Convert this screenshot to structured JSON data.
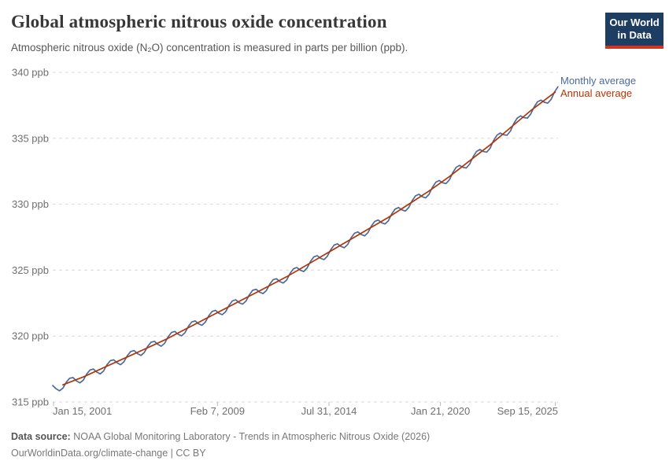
{
  "header": {
    "title": "Global atmospheric nitrous oxide concentration",
    "subtitle": "Atmospheric nitrous oxide (N₂O) concentration is measured in parts per billion (ppb).",
    "logo": {
      "line1": "Our World",
      "line2": "in Data",
      "bg_color": "#1d3d63",
      "accent_color": "#d13422"
    }
  },
  "chart_data": {
    "type": "line",
    "title": "Global atmospheric nitrous oxide concentration",
    "ylabel": "parts per billion (ppb)",
    "xlabel": "",
    "grid": "dashed-horizontal",
    "legend_position": "right-of-line-end",
    "xlim": [
      2001.0,
      2025.84
    ],
    "ylim": [
      315,
      340
    ],
    "y_ticks": [
      {
        "value": 340,
        "label": "340 ppb"
      },
      {
        "value": 335,
        "label": "335 ppb"
      },
      {
        "value": 330,
        "label": "330 ppb"
      },
      {
        "value": 325,
        "label": "325 ppb"
      },
      {
        "value": 320,
        "label": "320 ppb"
      },
      {
        "value": 315,
        "label": "315 ppb"
      }
    ],
    "x_ticks": [
      {
        "x": 2001.04,
        "label": "Jan 15, 2001"
      },
      {
        "x": 2009.1,
        "label": "Feb 7, 2009"
      },
      {
        "x": 2014.58,
        "label": "Jul 31, 2014"
      },
      {
        "x": 2020.06,
        "label": "Jan 21, 2020"
      },
      {
        "x": 2025.71,
        "label": "Sep 15, 2025"
      }
    ],
    "series": [
      {
        "name": "Monthly average",
        "color": "#4C6A9C",
        "x_start": 2001.0,
        "x_step": 0.166667,
        "values": [
          316.25,
          316.0,
          315.85,
          316.05,
          316.5,
          316.8,
          316.85,
          316.6,
          316.45,
          316.65,
          317.12,
          317.43,
          317.5,
          317.27,
          317.13,
          317.35,
          317.82,
          318.13,
          318.2,
          317.97,
          317.83,
          318.05,
          318.52,
          318.83,
          318.9,
          318.67,
          318.53,
          318.75,
          319.22,
          319.53,
          319.6,
          319.37,
          319.23,
          319.45,
          319.93,
          320.27,
          320.35,
          320.13,
          320.02,
          320.25,
          320.73,
          321.07,
          321.15,
          320.93,
          320.82,
          321.05,
          321.53,
          321.87,
          321.95,
          321.73,
          321.62,
          321.85,
          322.33,
          322.67,
          322.75,
          322.53,
          322.42,
          322.65,
          323.13,
          323.47,
          323.55,
          323.33,
          323.22,
          323.45,
          323.93,
          324.27,
          324.35,
          324.13,
          324.02,
          324.25,
          324.75,
          325.1,
          325.2,
          325.0,
          324.9,
          325.15,
          325.65,
          326.0,
          326.1,
          325.9,
          325.8,
          326.05,
          326.55,
          326.9,
          327.0,
          326.8,
          326.7,
          326.95,
          327.45,
          327.8,
          327.9,
          327.7,
          327.6,
          327.85,
          328.35,
          328.7,
          328.8,
          328.6,
          328.5,
          328.75,
          329.27,
          329.63,
          329.75,
          329.57,
          329.48,
          329.75,
          330.27,
          330.63,
          330.75,
          330.57,
          330.48,
          330.75,
          331.28,
          331.67,
          331.8,
          331.63,
          331.57,
          331.85,
          332.4,
          332.8,
          332.95,
          332.8,
          332.75,
          333.05,
          333.6,
          334.0,
          334.15,
          334.0,
          333.95,
          334.25,
          334.82,
          335.23,
          335.4,
          335.27,
          335.23,
          335.55,
          336.12,
          336.53,
          336.7,
          336.57,
          336.53,
          336.85,
          337.38,
          337.77,
          337.9,
          337.73,
          337.67,
          337.95,
          338.5,
          338.9
        ]
      },
      {
        "name": "Annual average",
        "color": "#B13507",
        "x": [
          2001.5,
          2002.5,
          2003.5,
          2004.5,
          2005.5,
          2006.5,
          2007.5,
          2008.5,
          2009.5,
          2010.5,
          2011.5,
          2012.5,
          2013.5,
          2014.5,
          2015.5,
          2016.5,
          2017.5,
          2018.5,
          2019.5,
          2020.5,
          2021.5,
          2022.5,
          2023.5,
          2024.5,
          2025.7
        ],
        "values": [
          316.3,
          316.9,
          317.6,
          318.3,
          319.0,
          319.7,
          320.5,
          321.3,
          322.1,
          322.9,
          323.7,
          324.5,
          325.4,
          326.3,
          327.2,
          328.1,
          329.0,
          330.0,
          331.0,
          332.1,
          333.3,
          334.5,
          335.8,
          337.1,
          338.5
        ]
      }
    ]
  },
  "footer": {
    "source_label": "Data source:",
    "source_text": " NOAA Global Monitoring Laboratory - Trends in Atmospheric Nitrous Oxide (2026)",
    "link_text": "OurWorldinData.org/climate-change",
    "separator": " | ",
    "license_text": "CC BY"
  }
}
